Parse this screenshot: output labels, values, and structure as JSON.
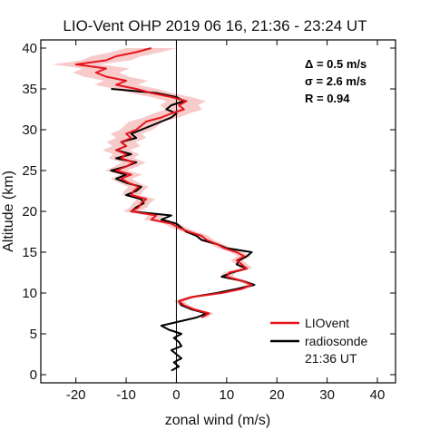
{
  "chart_data": {
    "type": "line",
    "title": "LIO-Vent OHP 2019 06 16, 21:36 - 23:24 UT",
    "xlabel": "zonal wind (m/s)",
    "ylabel": "Altitude (km)",
    "xlim": [
      -25,
      40
    ],
    "ylim": [
      0,
      40
    ],
    "xticks": [
      "-20",
      "-10",
      "0",
      "10",
      "20",
      "30",
      "40"
    ],
    "yticks": [
      "0",
      "5",
      "10",
      "15",
      "20",
      "25",
      "30",
      "35",
      "40"
    ],
    "zero_line_x": 0,
    "stats": [
      "Δ = 0.5 m/s",
      "σ = 2.6 m/s",
      "R = 0.94"
    ],
    "legend_position": "bottom-right",
    "colors": {
      "liovent": "#e8141c",
      "band": "#f6b9b9",
      "radiosonde": "#000000"
    },
    "series": [
      {
        "name": "LIOvent",
        "altitude": [
          7.0,
          7.5,
          8.0,
          8.5,
          9.0,
          9.5,
          10.0,
          10.5,
          11.0,
          11.5,
          12.0,
          12.5,
          13.0,
          13.5,
          14.0,
          14.5,
          15.0,
          15.5,
          16.0,
          16.5,
          17.0,
          17.5,
          18.0,
          18.5,
          19.0,
          19.5,
          20.0,
          20.5,
          21.0,
          21.5,
          22.0,
          22.5,
          23.0,
          23.5,
          24.0,
          24.5,
          25.0,
          25.5,
          26.0,
          26.5,
          27.0,
          27.5,
          28.0,
          28.5,
          29.0,
          29.5,
          30.0,
          30.5,
          31.0,
          31.5,
          32.0,
          32.5,
          33.0,
          33.5,
          34.0,
          34.5,
          35.0,
          35.5,
          36.0,
          36.5,
          37.0,
          37.5,
          38.0,
          38.5,
          39.0,
          39.5,
          40.0
        ],
        "wind": [
          5.0,
          6.5,
          3.5,
          1.5,
          0.5,
          3.0,
          9.0,
          13.0,
          15.0,
          13.0,
          10.0,
          10.5,
          14.0,
          13.0,
          12.0,
          13.5,
          12.0,
          9.5,
          8.0,
          6.0,
          5.0,
          2.5,
          0.5,
          -1.0,
          -5.0,
          -4.0,
          -9.0,
          -7.5,
          -7.0,
          -6.0,
          -9.0,
          -8.5,
          -7.5,
          -9.5,
          -11.0,
          -9.0,
          -12.0,
          -10.0,
          -8.5,
          -11.0,
          -10.0,
          -12.0,
          -10.0,
          -11.0,
          -9.0,
          -10.0,
          -8.0,
          -7.0,
          -6.0,
          -3.0,
          -1.0,
          1.5,
          0.5,
          2.0,
          -1.0,
          -5.0,
          -8.0,
          -12.0,
          -10.0,
          -14.0,
          -16.0,
          -14.0,
          -20.0,
          -14.0,
          -12.0,
          -8.0,
          -5.0
        ],
        "uncertainty": [
          1.0,
          1.0,
          1.0,
          1.0,
          1.0,
          1.0,
          1.0,
          1.0,
          1.0,
          1.0,
          1.2,
          1.2,
          1.2,
          1.2,
          1.2,
          1.3,
          1.3,
          1.3,
          1.3,
          1.4,
          1.4,
          1.4,
          1.5,
          1.5,
          1.5,
          1.6,
          1.6,
          1.7,
          1.7,
          1.8,
          1.8,
          1.9,
          2.0,
          2.0,
          2.1,
          2.2,
          2.2,
          2.3,
          2.4,
          2.5,
          2.6,
          2.7,
          2.8,
          2.9,
          3.0,
          3.1,
          3.2,
          3.3,
          3.4,
          3.5,
          3.6,
          3.7,
          3.8,
          3.9,
          4.0,
          4.1,
          4.2,
          4.3,
          4.4,
          4.5,
          4.6,
          4.7,
          4.8,
          4.9,
          5.0,
          5.0,
          5.0
        ]
      },
      {
        "name": "radiosonde",
        "name_line2": "21:36 UT",
        "altitude": [
          0.5,
          1.0,
          1.5,
          2.0,
          2.5,
          3.0,
          3.5,
          4.0,
          4.5,
          5.0,
          5.5,
          6.0,
          6.5,
          7.0,
          7.5,
          8.0,
          8.5,
          9.0,
          9.5,
          10.0,
          10.5,
          11.0,
          11.5,
          12.0,
          12.5,
          13.0,
          13.5,
          14.0,
          14.5,
          15.0,
          15.5,
          16.0,
          16.5,
          17.0,
          17.5,
          18.0,
          18.5,
          19.0,
          19.5,
          20.0,
          20.5,
          21.0,
          21.5,
          22.0,
          22.5,
          23.0,
          23.5,
          24.0,
          24.5,
          25.0,
          25.5,
          26.0,
          26.5,
          27.0,
          27.5,
          28.0,
          28.5,
          29.0,
          29.5,
          30.0,
          30.5,
          31.0,
          31.5,
          32.0,
          32.5,
          33.0,
          33.5,
          34.0,
          34.5,
          35.0
        ],
        "wind": [
          -1.0,
          0.5,
          -0.5,
          1.0,
          0.0,
          -1.0,
          1.0,
          0.5,
          -0.5,
          1.0,
          -1.5,
          -3.0,
          0.5,
          4.0,
          6.0,
          3.0,
          1.0,
          0.5,
          3.0,
          8.0,
          12.0,
          15.5,
          13.0,
          9.0,
          11.0,
          14.0,
          12.0,
          12.5,
          14.0,
          15.0,
          10.0,
          8.0,
          5.0,
          4.0,
          2.0,
          1.0,
          0.0,
          -3.0,
          -1.0,
          -9.0,
          -8.0,
          -6.5,
          -7.0,
          -10.0,
          -8.0,
          -7.0,
          -10.0,
          -12.0,
          -10.0,
          -13.0,
          -10.0,
          -8.0,
          -12.0,
          -9.0,
          -12.0,
          -10.0,
          -11.0,
          -8.0,
          -9.0,
          -7.0,
          -5.0,
          -3.0,
          -1.0,
          0.0,
          -2.0,
          -1.0,
          1.5,
          0.0,
          -4.0,
          -13.0
        ]
      }
    ]
  }
}
